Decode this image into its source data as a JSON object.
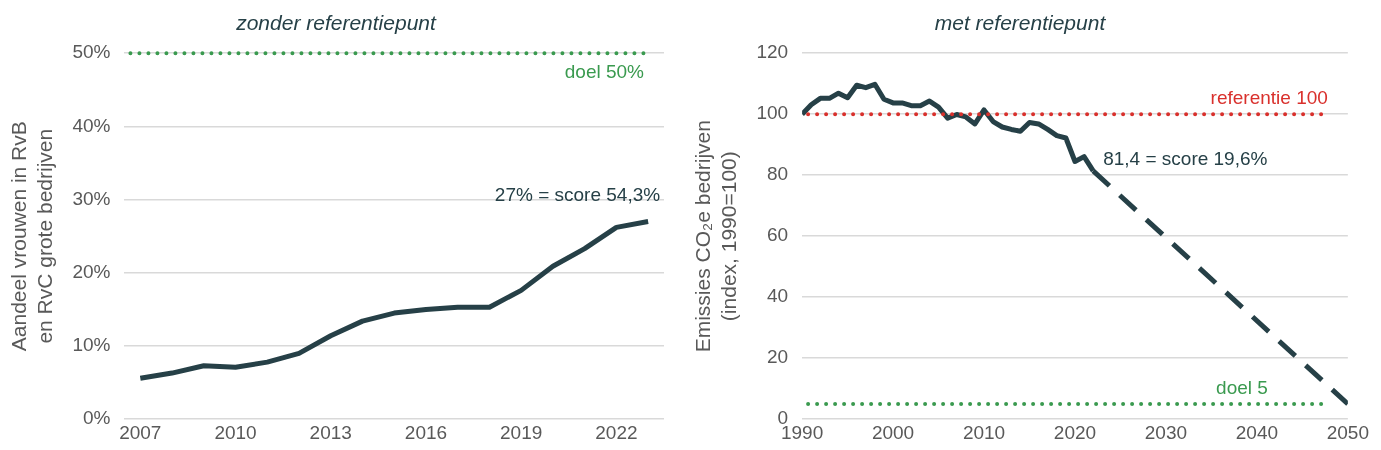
{
  "chart_data": [
    {
      "type": "line",
      "title": "zonder referentiepunt",
      "ylabel": "Aandeel vrouwen in RvB\nen RvC grote bedrijven",
      "x": [
        2007,
        2008,
        2009,
        2010,
        2011,
        2012,
        2013,
        2014,
        2015,
        2016,
        2017,
        2018,
        2019,
        2020,
        2021,
        2022,
        2023
      ],
      "series": [
        {
          "color": "#264047",
          "line_style": "solid",
          "values": [
            5.6,
            6.3,
            7.3,
            7.1,
            7.8,
            9.0,
            11.4,
            13.4,
            14.5,
            15.0,
            15.3,
            15.3,
            17.6,
            20.9,
            23.3,
            26.2,
            27.0
          ]
        }
      ],
      "xlim": [
        2006.5,
        2023.5
      ],
      "xticks": [
        2007,
        2010,
        2013,
        2016,
        2019,
        2022
      ],
      "ylim": [
        0,
        50
      ],
      "yticks": [
        {
          "value": 0,
          "label": "0%"
        },
        {
          "value": 10,
          "label": "10%"
        },
        {
          "value": 20,
          "label": "20%"
        },
        {
          "value": 30,
          "label": "30%"
        },
        {
          "value": 40,
          "label": "40%"
        },
        {
          "value": 50,
          "label": "50%"
        }
      ],
      "grid": "y",
      "ref_lines": [
        {
          "axis": "y",
          "value": 50,
          "label": "doel 50%",
          "color": "#3a9a4f",
          "line_style": "dotted"
        }
      ],
      "annotations": [
        {
          "text": "27% = score 54,3%",
          "x": 2023,
          "y": 27.0
        }
      ]
    },
    {
      "type": "line",
      "title": "met referentiepunt",
      "ylabel": "Emissies CO₂e bedrijven\n(index, 1990=100)",
      "series": [
        {
          "color": "#264047",
          "line_style": "solid",
          "x": [
            1990,
            1991,
            1992,
            1993,
            1994,
            1995,
            1996,
            1997,
            1998,
            1999,
            2000,
            2001,
            2002,
            2003,
            2004,
            2005,
            2006,
            2007,
            2008,
            2009,
            2010,
            2011,
            2012,
            2013,
            2014,
            2015,
            2016,
            2017,
            2018,
            2019,
            2020,
            2021,
            2022
          ],
          "values": [
            100,
            103.1,
            105.2,
            105.2,
            106.9,
            105.4,
            109.5,
            108.7,
            109.8,
            104.9,
            103.7,
            103.7,
            102.8,
            102.8,
            104.3,
            102.3,
            98.7,
            99.9,
            99.1,
            96.8,
            101.4,
            97.6,
            95.8,
            95.0,
            94.4,
            97.3,
            96.8,
            95.0,
            93.0,
            92.2,
            84.5,
            86.1,
            81.4
          ]
        },
        {
          "color": "#264047",
          "line_style": "dashed",
          "x": [
            2022,
            2050
          ],
          "values": [
            81.4,
            5
          ]
        }
      ],
      "xlim": [
        1990,
        2050
      ],
      "xticks": [
        1990,
        2000,
        2010,
        2020,
        2030,
        2040,
        2050
      ],
      "ylim": [
        0,
        120
      ],
      "yticks": [
        0,
        20,
        40,
        60,
        80,
        100,
        120
      ],
      "grid": "y",
      "ref_lines": [
        {
          "axis": "y",
          "value": 100,
          "label": "referentie 100",
          "color": "#d9302c",
          "line_style": "dotted"
        },
        {
          "axis": "y",
          "value": 5,
          "label": "doel 5",
          "color": "#3a9a4f",
          "line_style": "dotted"
        }
      ],
      "annotations": [
        {
          "text": "81,4 = score 19,6%",
          "x": 2022,
          "y": 81.4
        }
      ]
    }
  ]
}
